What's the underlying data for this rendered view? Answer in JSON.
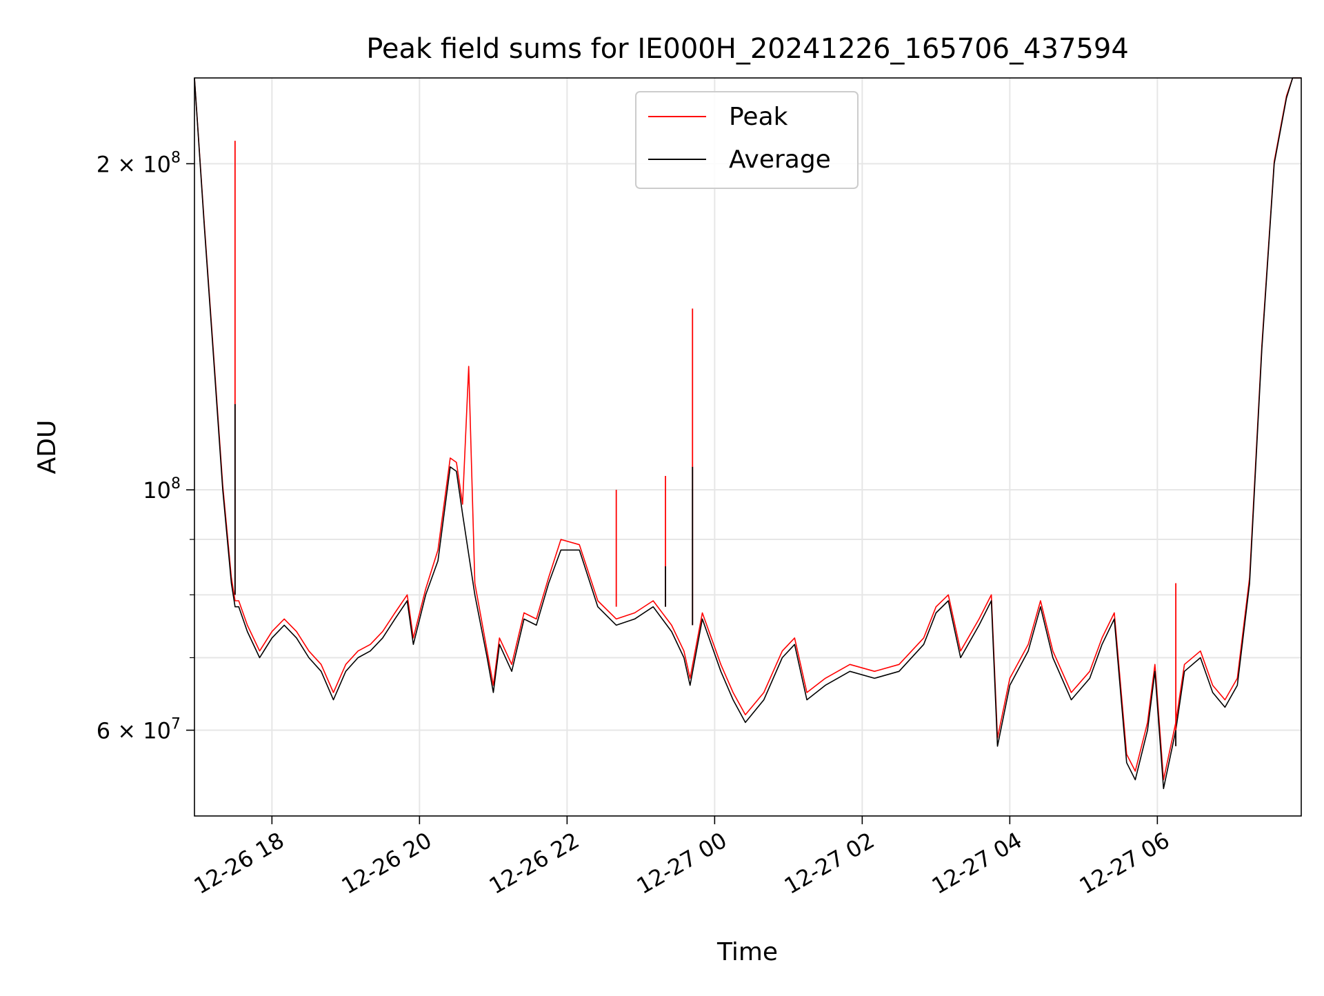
{
  "chart_data": {
    "type": "line",
    "title": "Peak field sums for IE000H_20241226_165706_437594",
    "xlabel": "Time",
    "ylabel": "ADU",
    "y_scale": "log",
    "ylim": [
      50000000,
      240000000
    ],
    "xlim": [
      "2024-12-26 16:57",
      "2024-12-27 07:57"
    ],
    "x_ticks": [
      "2024-12-26 18:00",
      "2024-12-26 20:00",
      "2024-12-26 22:00",
      "2024-12-27 00:00",
      "2024-12-27 02:00",
      "2024-12-27 04:00",
      "2024-12-27 06:00"
    ],
    "x_tick_labels": [
      "12-26 18",
      "12-26 20",
      "12-26 22",
      "12-27 00",
      "12-27 02",
      "12-27 04",
      "12-27 06"
    ],
    "y_major_ticks": [
      {
        "value": 60000000,
        "base": "6 × 10",
        "exp": "7"
      },
      {
        "value": 100000000,
        "base": "10",
        "exp": "8"
      },
      {
        "value": 200000000,
        "base": "2 × 10",
        "exp": "8"
      }
    ],
    "y_minor_ticks": [
      70000000,
      80000000,
      90000000
    ],
    "grid": true,
    "legend": {
      "position": "top-center",
      "entries": [
        "Peak",
        "Average"
      ]
    },
    "colors": {
      "Peak": "#ff0000",
      "Average": "#000000",
      "grid": "#e6e6e6"
    },
    "series": [
      {
        "name": "Average",
        "x": [
          "2024-12-26 16:57",
          "2024-12-26 17:05",
          "2024-12-26 17:12",
          "2024-12-26 17:20",
          "2024-12-26 17:27",
          "2024-12-26 17:30",
          "2024-12-26 17:33",
          "2024-12-26 17:40",
          "2024-12-26 17:50",
          "2024-12-26 18:00",
          "2024-12-26 18:10",
          "2024-12-26 18:20",
          "2024-12-26 18:30",
          "2024-12-26 18:40",
          "2024-12-26 18:50",
          "2024-12-26 19:00",
          "2024-12-26 19:10",
          "2024-12-26 19:20",
          "2024-12-26 19:30",
          "2024-12-26 19:40",
          "2024-12-26 19:50",
          "2024-12-26 19:55",
          "2024-12-26 20:05",
          "2024-12-26 20:15",
          "2024-12-26 20:25",
          "2024-12-26 20:30",
          "2024-12-26 20:35",
          "2024-12-26 20:45",
          "2024-12-26 20:55",
          "2024-12-26 21:00",
          "2024-12-26 21:05",
          "2024-12-26 21:15",
          "2024-12-26 21:25",
          "2024-12-26 21:35",
          "2024-12-26 21:45",
          "2024-12-26 21:55",
          "2024-12-26 22:10",
          "2024-12-26 22:25",
          "2024-12-26 22:40",
          "2024-12-26 22:55",
          "2024-12-26 23:10",
          "2024-12-26 23:25",
          "2024-12-26 23:35",
          "2024-12-26 23:40",
          "2024-12-26 23:50",
          "2024-12-27 00:05",
          "2024-12-27 00:15",
          "2024-12-27 00:25",
          "2024-12-27 00:40",
          "2024-12-27 00:55",
          "2024-12-27 01:05",
          "2024-12-27 01:15",
          "2024-12-27 01:30",
          "2024-12-27 01:50",
          "2024-12-27 02:10",
          "2024-12-27 02:30",
          "2024-12-27 02:50",
          "2024-12-27 03:00",
          "2024-12-27 03:10",
          "2024-12-27 03:20",
          "2024-12-27 03:35",
          "2024-12-27 03:45",
          "2024-12-27 03:50",
          "2024-12-27 04:00",
          "2024-12-27 04:15",
          "2024-12-27 04:25",
          "2024-12-27 04:35",
          "2024-12-27 04:50",
          "2024-12-27 05:05",
          "2024-12-27 05:15",
          "2024-12-27 05:25",
          "2024-12-27 05:35",
          "2024-12-27 05:42",
          "2024-12-27 05:52",
          "2024-12-27 05:58",
          "2024-12-27 06:05",
          "2024-12-27 06:15",
          "2024-12-27 06:22",
          "2024-12-27 06:35",
          "2024-12-27 06:45",
          "2024-12-27 06:55",
          "2024-12-27 07:05",
          "2024-12-27 07:15",
          "2024-12-27 07:25",
          "2024-12-27 07:35",
          "2024-12-27 07:45",
          "2024-12-27 07:50",
          "2024-12-27 07:57"
        ],
        "y": [
          240000000,
          175000000,
          135000000,
          100000000,
          82000000,
          78000000,
          78000000,
          74000000,
          70000000,
          73000000,
          75000000,
          73000000,
          70000000,
          68000000,
          64000000,
          68000000,
          70000000,
          71000000,
          73000000,
          76000000,
          79000000,
          72000000,
          80000000,
          86000000,
          105000000,
          104000000,
          95000000,
          80000000,
          70000000,
          65000000,
          72000000,
          68000000,
          76000000,
          75000000,
          82000000,
          88000000,
          88000000,
          78000000,
          75000000,
          76000000,
          78000000,
          74000000,
          70000000,
          66000000,
          76000000,
          68000000,
          64000000,
          61000000,
          64000000,
          70000000,
          72000000,
          64000000,
          66000000,
          68000000,
          67000000,
          68000000,
          72000000,
          77000000,
          79000000,
          70000000,
          75000000,
          79000000,
          58000000,
          66000000,
          71000000,
          78000000,
          70000000,
          64000000,
          67000000,
          72000000,
          76000000,
          56000000,
          54000000,
          60000000,
          68000000,
          53000000,
          60000000,
          68000000,
          70000000,
          65000000,
          63000000,
          66000000,
          82000000,
          135000000,
          200000000,
          230000000,
          240000000,
          240000000
        ]
      },
      {
        "name": "Peak",
        "x": [
          "2024-12-26 16:57",
          "2024-12-26 17:05",
          "2024-12-26 17:12",
          "2024-12-26 17:20",
          "2024-12-26 17:27",
          "2024-12-26 17:30",
          "2024-12-26 17:33",
          "2024-12-26 17:40",
          "2024-12-26 17:50",
          "2024-12-26 18:00",
          "2024-12-26 18:10",
          "2024-12-26 18:20",
          "2024-12-26 18:30",
          "2024-12-26 18:40",
          "2024-12-26 18:50",
          "2024-12-26 19:00",
          "2024-12-26 19:10",
          "2024-12-26 19:20",
          "2024-12-26 19:30",
          "2024-12-26 19:40",
          "2024-12-26 19:50",
          "2024-12-26 19:55",
          "2024-12-26 20:05",
          "2024-12-26 20:15",
          "2024-12-26 20:25",
          "2024-12-26 20:30",
          "2024-12-26 20:35",
          "2024-12-26 20:40",
          "2024-12-26 20:45",
          "2024-12-26 20:55",
          "2024-12-26 21:00",
          "2024-12-26 21:05",
          "2024-12-26 21:15",
          "2024-12-26 21:25",
          "2024-12-26 21:35",
          "2024-12-26 21:45",
          "2024-12-26 21:55",
          "2024-12-26 22:10",
          "2024-12-26 22:25",
          "2024-12-26 22:40",
          "2024-12-26 22:55",
          "2024-12-26 23:10",
          "2024-12-26 23:25",
          "2024-12-26 23:35",
          "2024-12-26 23:40",
          "2024-12-26 23:50",
          "2024-12-27 00:05",
          "2024-12-27 00:15",
          "2024-12-27 00:25",
          "2024-12-27 00:40",
          "2024-12-27 00:55",
          "2024-12-27 01:05",
          "2024-12-27 01:15",
          "2024-12-27 01:30",
          "2024-12-27 01:50",
          "2024-12-27 02:10",
          "2024-12-27 02:30",
          "2024-12-27 02:50",
          "2024-12-27 03:00",
          "2024-12-27 03:10",
          "2024-12-27 03:20",
          "2024-12-27 03:35",
          "2024-12-27 03:45",
          "2024-12-27 03:50",
          "2024-12-27 04:00",
          "2024-12-27 04:15",
          "2024-12-27 04:25",
          "2024-12-27 04:35",
          "2024-12-27 04:50",
          "2024-12-27 05:05",
          "2024-12-27 05:15",
          "2024-12-27 05:25",
          "2024-12-27 05:35",
          "2024-12-27 05:42",
          "2024-12-27 05:52",
          "2024-12-27 05:58",
          "2024-12-27 06:05",
          "2024-12-27 06:15",
          "2024-12-27 06:22",
          "2024-12-27 06:35",
          "2024-12-27 06:45",
          "2024-12-27 06:55",
          "2024-12-27 07:05",
          "2024-12-27 07:15",
          "2024-12-27 07:25",
          "2024-12-27 07:35",
          "2024-12-27 07:45",
          "2024-12-27 07:50",
          "2024-12-27 07:57"
        ],
        "y": [
          240000000,
          176000000,
          136000000,
          101000000,
          83000000,
          79000000,
          79000000,
          75000000,
          71000000,
          74000000,
          76000000,
          74000000,
          71000000,
          69000000,
          65000000,
          69000000,
          71000000,
          72000000,
          74000000,
          77000000,
          80000000,
          73000000,
          81000000,
          88000000,
          107000000,
          106000000,
          97000000,
          130000000,
          82000000,
          71000000,
          66000000,
          73000000,
          69000000,
          77000000,
          76000000,
          83000000,
          90000000,
          89000000,
          79000000,
          76000000,
          77000000,
          79000000,
          75000000,
          71000000,
          67000000,
          77000000,
          69000000,
          65000000,
          62000000,
          65000000,
          71000000,
          73000000,
          65000000,
          67000000,
          69000000,
          68000000,
          69000000,
          73000000,
          78000000,
          80000000,
          71000000,
          76000000,
          80000000,
          59000000,
          67000000,
          72000000,
          79000000,
          71000000,
          65000000,
          68000000,
          73000000,
          77000000,
          57000000,
          55000000,
          61000000,
          69000000,
          54000000,
          61000000,
          69000000,
          71000000,
          66000000,
          64000000,
          67000000,
          83000000,
          136000000,
          201000000,
          231000000,
          240000000,
          240000000
        ]
      }
    ],
    "spikes": [
      {
        "x": "2024-12-26 17:30",
        "base": 80000000,
        "peak": 210000000,
        "average": 120000000
      },
      {
        "x": "2024-12-26 22:40",
        "base": 78000000,
        "peak": 100000000,
        "average": 78000000
      },
      {
        "x": "2024-12-26 23:20",
        "base": 78000000,
        "peak": 103000000,
        "average": 85000000
      },
      {
        "x": "2024-12-26 23:42",
        "base": 75000000,
        "peak": 147000000,
        "average": 105000000
      },
      {
        "x": "2024-12-27 06:15",
        "base": 58000000,
        "peak": 82000000,
        "average": 60000000
      }
    ]
  }
}
